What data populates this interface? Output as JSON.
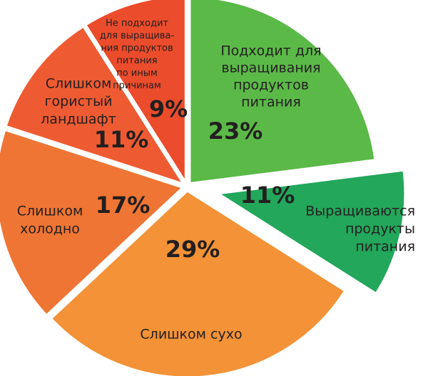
{
  "chart_data": {
    "type": "pie",
    "categories": [
      [
        "Подходит для",
        "выращивания",
        "продуктов",
        "питания"
      ],
      [
        "Выращиваются",
        "продукты",
        "питания"
      ],
      [
        "Слишком сухо"
      ],
      [
        "Слишком",
        "холодно"
      ],
      [
        "Слишком",
        "гористый",
        "ландшафт"
      ],
      [
        "Не подходит",
        "для выращива-",
        "ния продуктов",
        "питания",
        "по иным",
        "причинам"
      ]
    ],
    "values": [
      23,
      11,
      29,
      17,
      11,
      9
    ],
    "value_labels": [
      "23%",
      "11%",
      "29%",
      "17%",
      "11%",
      "9%"
    ],
    "colors": [
      "#5bb948",
      "#22a75b",
      "#f39236",
      "#ef7534",
      "#ee5b32",
      "#eb4c2c"
    ]
  }
}
